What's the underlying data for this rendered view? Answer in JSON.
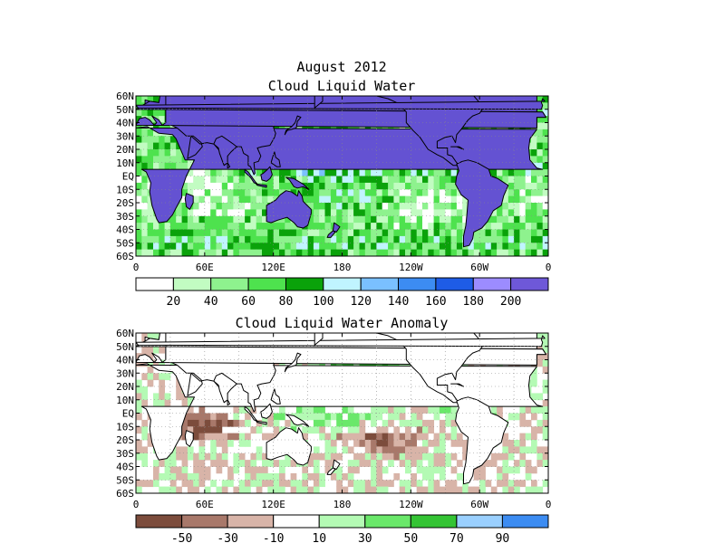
{
  "titles": {
    "main": "August 2012",
    "panel1": "Cloud Liquid Water",
    "panel2": "Cloud Liquid Water Anomaly"
  },
  "lat_labels": [
    "60N",
    "50N",
    "40N",
    "30N",
    "20N",
    "10N",
    "EQ",
    "10S",
    "20S",
    "30S",
    "40S",
    "50S",
    "60S"
  ],
  "lon_labels": [
    "0",
    "60E",
    "120E",
    "180",
    "120W",
    "60W",
    "0"
  ],
  "panel1": {
    "colorbar_labels": [
      "20",
      "40",
      "60",
      "80",
      "100",
      "120",
      "140",
      "160",
      "180",
      "200"
    ],
    "colors": [
      "#ffffff",
      "#c2fcc2",
      "#8ef28e",
      "#4ee24e",
      "#0aa20a",
      "#c0f4ff",
      "#7ac0ff",
      "#3c8cf2",
      "#1e5ce6",
      "#9c8cff",
      "#6e58d8"
    ],
    "land_color": "#6452d2"
  },
  "panel2": {
    "colorbar_labels": [
      "-50",
      "-30",
      "-10",
      "10",
      "30",
      "50",
      "70",
      "90"
    ],
    "colors": [
      "#7c4c3c",
      "#a8786a",
      "#d8b4a8",
      "#ffffff",
      "#b4fab4",
      "#6ae86a",
      "#34c434",
      "#9ad0ff",
      "#3c8cf2"
    ],
    "land_color": "#ffffff"
  }
}
